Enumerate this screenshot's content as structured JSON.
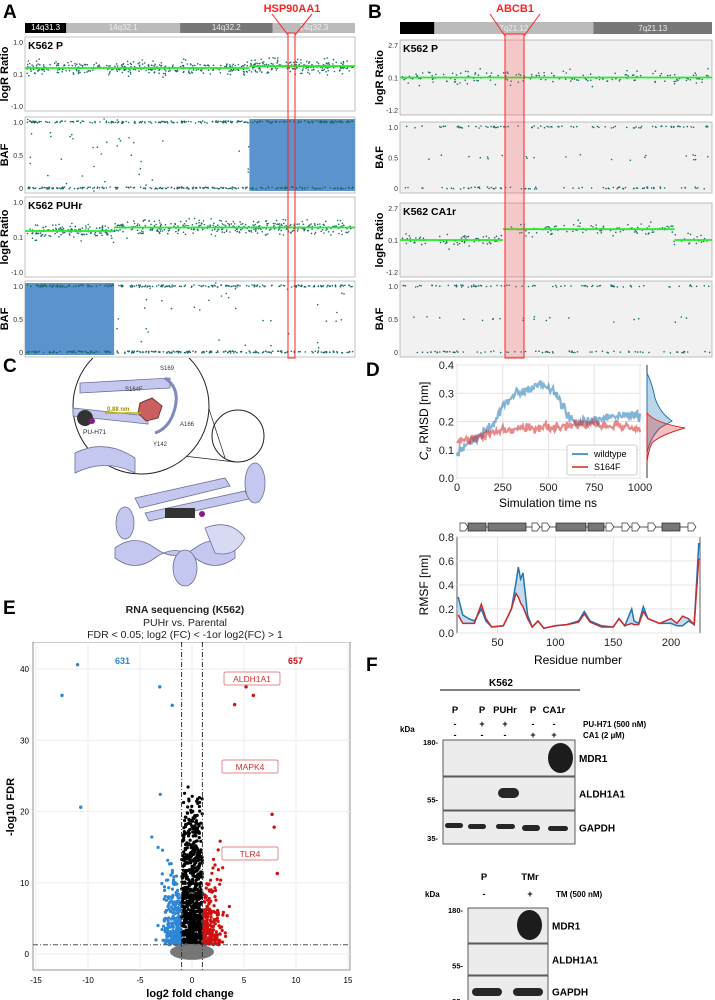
{
  "panels": {
    "a": "A",
    "b": "B",
    "c": "C",
    "d": "D",
    "e": "E",
    "f": "F"
  },
  "colors": {
    "scatter": "#1b6b6b",
    "segment": "#22ee22",
    "loh": "#5b93cc",
    "highlight": "#ff2222",
    "wildtype": "#1f77b4",
    "s164f": "#d62728",
    "up": "#d01010",
    "down": "#2f86d6",
    "ns": "#000000",
    "grey": "#888888"
  },
  "chart_data": [
    {
      "type": "scatter",
      "panel": "A",
      "ideogram": [
        "14q31.3",
        "14q32.1",
        "14q32.2",
        "14q32.3"
      ],
      "highlight_gene": "HSP90AA1",
      "tracks": [
        {
          "sample": "K562 P",
          "ylabel": "logR Ratio",
          "yticks": [
            "1.0",
            "0.1",
            "-1.0"
          ],
          "segments": [
            {
              "from": 0,
              "to": 0.68,
              "value": 0.1
            },
            {
              "from": 0.68,
              "to": 1,
              "value": 0.25
            }
          ]
        },
        {
          "sample": "",
          "ylabel": "BAF",
          "yticks": [
            "1.0",
            "0.5",
            "0"
          ],
          "loh_region": [
            0.68,
            1
          ]
        },
        {
          "sample": "K562 PUHr",
          "ylabel": "logR Ratio",
          "yticks": [
            "1.0",
            "0.1",
            "-1.0"
          ],
          "segments": [
            {
              "from": 0,
              "to": 0.27,
              "value": 0.1
            },
            {
              "from": 0.27,
              "to": 1,
              "value": 0.35
            }
          ]
        },
        {
          "sample": "",
          "ylabel": "BAF",
          "yticks": [
            "1.0",
            "0.5",
            "0"
          ],
          "loh_region": [
            0,
            0.27
          ]
        }
      ]
    },
    {
      "type": "scatter",
      "panel": "B",
      "ideogram": [
        "",
        "7q21.12",
        "7q21.13"
      ],
      "highlight_gene": "ABCB1",
      "tracks": [
        {
          "sample": "K562 P",
          "ylabel": "logR Ratio",
          "yticks": [
            "2.7",
            "0.1",
            "-1.2"
          ],
          "segments": [
            {
              "from": 0,
              "to": 1,
              "value": 0.1
            }
          ]
        },
        {
          "sample": "",
          "ylabel": "BAF",
          "yticks": [
            "1.0",
            "0.5",
            "0"
          ]
        },
        {
          "sample": "K562 CA1r",
          "ylabel": "logR Ratio",
          "yticks": [
            "2.7",
            "0.1",
            "-1.2"
          ],
          "segments": [
            {
              "from": 0,
              "to": 0.33,
              "value": 0.1
            },
            {
              "from": 0.33,
              "to": 0.88,
              "value": 0.85
            },
            {
              "from": 0.88,
              "to": 1,
              "value": 0.1
            }
          ]
        },
        {
          "sample": "",
          "ylabel": "BAF",
          "yticks": [
            "1.0",
            "0.5",
            "0"
          ]
        }
      ]
    },
    {
      "type": "line",
      "panel": "D-rmsd",
      "ylabel": "RMSD [nm]",
      "ylabel_prefix": "C",
      "ylabel_sub": "α",
      "xlabel": "Simulation time  ns",
      "xlim": [
        0,
        1000
      ],
      "ylim": [
        0,
        0.4
      ],
      "xticks": [
        "0",
        "250",
        "500",
        "750",
        "1000"
      ],
      "yticks": [
        "0.0",
        "0.1",
        "0.2",
        "0.3",
        "0.4"
      ],
      "legend": "bottom-right",
      "x": [
        0,
        100,
        200,
        250,
        300,
        400,
        450,
        500,
        550,
        600,
        650,
        750,
        850,
        1000
      ],
      "series": [
        {
          "name": "wildtype",
          "values": [
            0.09,
            0.14,
            0.19,
            0.26,
            0.29,
            0.32,
            0.34,
            0.32,
            0.29,
            0.23,
            0.19,
            0.2,
            0.22,
            0.22
          ]
        },
        {
          "name": "S164F",
          "values": [
            0.13,
            0.14,
            0.16,
            0.17,
            0.17,
            0.18,
            0.18,
            0.18,
            0.18,
            0.19,
            0.19,
            0.19,
            0.19,
            0.17
          ]
        }
      ]
    },
    {
      "type": "line",
      "panel": "D-rmsf",
      "ylabel": "RMSF [nm]",
      "xlabel": "Residue number",
      "xlim": [
        15,
        225
      ],
      "ylim": [
        0,
        0.8
      ],
      "xticks": [
        "50",
        "100",
        "150",
        "200"
      ],
      "yticks": [
        "0.0",
        "0.2",
        "0.4",
        "0.6",
        "0.8"
      ],
      "x": [
        16,
        20,
        25,
        30,
        36,
        40,
        45,
        55,
        62,
        66,
        68,
        70,
        72,
        76,
        80,
        85,
        90,
        100,
        110,
        120,
        125,
        130,
        140,
        150,
        155,
        160,
        166,
        168,
        172,
        176,
        180,
        190,
        200,
        205,
        210,
        215,
        220,
        224
      ],
      "series": [
        {
          "name": "wildtype",
          "values": [
            0.3,
            0.15,
            0.12,
            0.1,
            0.2,
            0.1,
            0.05,
            0.06,
            0.2,
            0.42,
            0.55,
            0.45,
            0.5,
            0.15,
            0.05,
            0.1,
            0.04,
            0.06,
            0.07,
            0.1,
            0.18,
            0.1,
            0.06,
            0.05,
            0.12,
            0.06,
            0.2,
            0.1,
            0.08,
            0.22,
            0.12,
            0.08,
            0.08,
            0.06,
            0.06,
            0.1,
            0.07,
            0.75
          ]
        },
        {
          "name": "S164F",
          "values": [
            0.15,
            0.08,
            0.08,
            0.08,
            0.24,
            0.12,
            0.05,
            0.06,
            0.2,
            0.33,
            0.3,
            0.25,
            0.22,
            0.12,
            0.05,
            0.1,
            0.04,
            0.06,
            0.07,
            0.09,
            0.16,
            0.09,
            0.05,
            0.05,
            0.12,
            0.06,
            0.08,
            0.07,
            0.07,
            0.18,
            0.12,
            0.08,
            0.12,
            0.08,
            0.14,
            0.12,
            0.07,
            0.62
          ]
        }
      ]
    },
    {
      "type": "scatter",
      "panel": "E",
      "title": "RNA sequencing (K562)",
      "subtitle": "PUHr vs. Parental",
      "criteria": "FDR < 0.05; log2 (FC) < -1or log2(FC) > 1",
      "xlabel": "log2 fold change",
      "ylabel": "-log10 FDR",
      "xlim": [
        -15,
        15
      ],
      "ylim": [
        -2,
        42
      ],
      "xticks": [
        "-15",
        "-10",
        "-5",
        "0",
        "5",
        "10",
        "15"
      ],
      "yticks": [
        "0",
        "10",
        "20",
        "30",
        "40"
      ],
      "thresholds": {
        "log2fc": [
          -1,
          1
        ],
        "neg_log10_fdr": 1.3
      },
      "counts": {
        "down": "631",
        "up": "657"
      },
      "labeled_genes": [
        {
          "gene": "ALDH1A1",
          "x": 5.2,
          "y": 37.5
        },
        {
          "gene": "MAPK4",
          "x": 5.0,
          "y": 25
        },
        {
          "gene": "TLR4",
          "x": 4.8,
          "y": 14
        }
      ]
    }
  ],
  "panel_c": {
    "labels": [
      "S169",
      "S164F",
      "0.88 nm",
      "A166",
      "PU-H71",
      "Y142"
    ]
  },
  "panel_f": {
    "cell_line": "K562",
    "blot1": {
      "lanes": [
        "P",
        "P",
        "PUHr",
        "P",
        "CA1r"
      ],
      "treatments": [
        {
          "name": "PU-H71 (500 nM)",
          "signs": [
            "-",
            "+",
            "+",
            "-",
            "-"
          ]
        },
        {
          "name": "CA1 (2 µM)",
          "signs": [
            "-",
            "-",
            "-",
            "+",
            "+"
          ]
        }
      ],
      "kda_label": "kDa",
      "markers": [
        "180",
        "55",
        "35"
      ],
      "bands": [
        "MDR1",
        "ALDH1A1",
        "GAPDH"
      ]
    },
    "blot2": {
      "lanes": [
        "P",
        "TMr"
      ],
      "treatments": [
        {
          "name": "TM (500 nM)",
          "signs": [
            "-",
            "+"
          ]
        }
      ],
      "kda_label": "kDa",
      "markers": [
        "180",
        "55",
        "35"
      ],
      "bands": [
        "MDR1",
        "ALDH1A1",
        "GAPDH"
      ]
    }
  }
}
